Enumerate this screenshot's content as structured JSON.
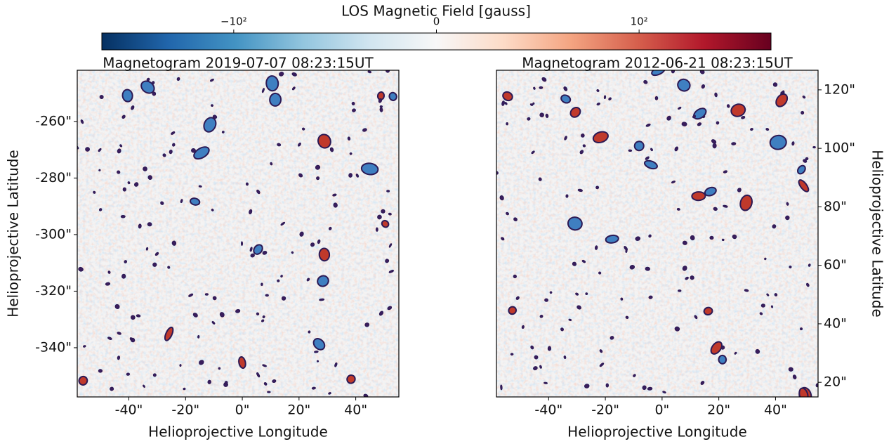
{
  "colorbar": {
    "label": "LOS Magnetic Field [gauss]",
    "scale": "symlog",
    "linthresh": 50,
    "clim": [
      -830,
      830
    ],
    "colors": [
      "#053061",
      "#2166ac",
      "#4393c3",
      "#92c5de",
      "#d1e5f0",
      "#f7f7f7",
      "#fddbc7",
      "#f4a582",
      "#d6604d",
      "#b2182b",
      "#67001f"
    ],
    "ticks": [
      {
        "value": -100,
        "label": "−10²"
      },
      0,
      {
        "value": 100,
        "label": "10²"
      }
    ]
  },
  "chart_data": [
    {
      "type": "heatmap",
      "title": "Magnetogram 2019-07-07 08:23:15UT",
      "xlabel": "Helioprojective Longitude",
      "ylabel": "Helioprojective Latitude",
      "y_axis_side": "left",
      "xlim": [
        -58.2,
        55.2
      ],
      "ylim": [
        -357.4,
        -241.9
      ],
      "xticks": [
        {
          "value": -40,
          "label": "-40\""
        },
        {
          "value": -20,
          "label": "-20\""
        },
        {
          "value": 0,
          "label": "0\""
        },
        {
          "value": 20,
          "label": "20\""
        },
        {
          "value": 40,
          "label": "40\""
        }
      ],
      "yticks": [
        {
          "value": -260,
          "label": "-260\""
        },
        {
          "value": -280,
          "label": "-280\""
        },
        {
          "value": -300,
          "label": "-300\""
        },
        {
          "value": -320,
          "label": "-320\""
        },
        {
          "value": -340,
          "label": "-340\""
        }
      ]
    },
    {
      "type": "heatmap",
      "title": "Magnetogram 2012-06-21 08:23:15UT",
      "xlabel": "Helioprojective Longitude",
      "ylabel": "Helioprojective Latitude",
      "y_axis_side": "right",
      "xlim": [
        -58.4,
        55.0
      ],
      "ylim": [
        15.0,
        126.7
      ],
      "xticks": [
        {
          "value": -40,
          "label": "-40\""
        },
        {
          "value": -20,
          "label": "-20\""
        },
        {
          "value": 0,
          "label": "0\""
        },
        {
          "value": 20,
          "label": "20\""
        },
        {
          "value": 40,
          "label": "40\""
        }
      ],
      "yticks": [
        {
          "value": 20,
          "label": "20\""
        },
        {
          "value": 40,
          "label": "40\""
        },
        {
          "value": 60,
          "label": "60\""
        },
        {
          "value": 80,
          "label": "80\""
        },
        {
          "value": 100,
          "label": "100\""
        },
        {
          "value": 120,
          "label": "120\""
        }
      ]
    }
  ]
}
